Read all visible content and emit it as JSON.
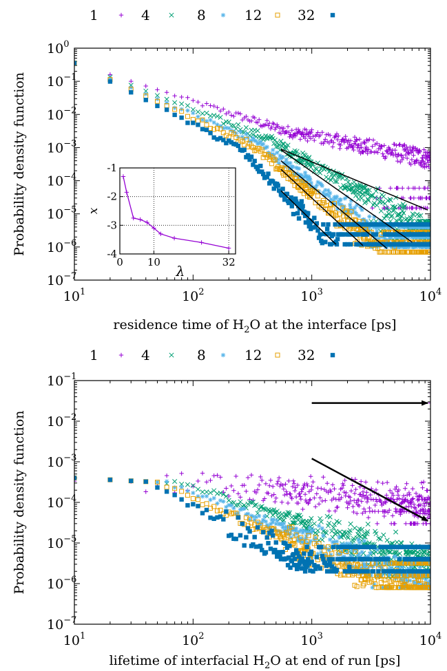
{
  "chart_data": [
    {
      "type": "scatter",
      "title": "",
      "xlabel": "residence time of H",
      "xlabel_sub": "2",
      "xlabel_rest": "O at the interface [ps]",
      "ylabel": "Probability density function",
      "xscale": "log",
      "yscale": "log",
      "xlim": [
        10,
        10000
      ],
      "ylim": [
        1e-07,
        1
      ],
      "x_ticks": [
        10,
        100,
        1000,
        10000
      ],
      "x_tick_labels": [
        {
          "base": "10",
          "exp": "1"
        },
        {
          "base": "10",
          "exp": "2"
        },
        {
          "base": "10",
          "exp": "3"
        },
        {
          "base": "10",
          "exp": "4"
        }
      ],
      "y_ticks": [
        1,
        0.1,
        0.01,
        0.001,
        0.0001,
        1e-05,
        1e-06,
        1e-07
      ],
      "y_tick_labels": [
        {
          "base": "10",
          "exp": "0"
        },
        {
          "base": "10",
          "exp": "−1"
        },
        {
          "base": "10",
          "exp": "−2"
        },
        {
          "base": "10",
          "exp": "−3"
        },
        {
          "base": "10",
          "exp": "−4"
        },
        {
          "base": "10",
          "exp": "−5"
        },
        {
          "base": "10",
          "exp": "−6"
        },
        {
          "base": "10",
          "exp": "−7"
        }
      ],
      "legend_position": "top, outside",
      "series": [
        {
          "name": "1",
          "marker": "plus",
          "color": "#9400d3",
          "log_start": -0.45,
          "slope_early": -1.15,
          "t_break": 600,
          "slope_late": -0.7,
          "floor": 1.5e-05
        },
        {
          "name": "4",
          "marker": "cross",
          "color": "#009e73",
          "log_start": -0.45,
          "slope_early": -1.4,
          "t_break": 450,
          "slope_late": -2.1,
          "floor": 1.5e-06
        },
        {
          "name": "8",
          "marker": "star",
          "color": "#56b4e9",
          "log_start": -0.45,
          "slope_early": -1.55,
          "t_break": 350,
          "slope_late": -2.7,
          "floor": 1e-06
        },
        {
          "name": "12",
          "marker": "open-square",
          "color": "#e69f00",
          "log_start": -0.45,
          "slope_early": -1.65,
          "t_break": 300,
          "slope_late": -2.9,
          "floor": 7e-07
        },
        {
          "name": "32",
          "marker": "filled-square",
          "color": "#0072b2",
          "log_start": -0.45,
          "slope_early": -1.85,
          "t_break": 250,
          "slope_late": -3.8,
          "floor": 1.2e-06
        }
      ],
      "fit_lines": [
        {
          "series": "1",
          "x": [
            550,
            9500
          ],
          "y": [
            0.0009,
            1.3e-05
          ]
        },
        {
          "series": "4",
          "x": [
            550,
            7000
          ],
          "y": [
            0.00085,
            1.4e-06
          ]
        },
        {
          "series": "8",
          "x": [
            550,
            4300
          ],
          "y": [
            0.0004,
            9e-07
          ]
        },
        {
          "series": "12",
          "x": [
            550,
            2700
          ],
          "y": [
            0.00022,
            1.1e-06
          ]
        },
        {
          "series": "32",
          "x": [
            550,
            1600
          ],
          "y": [
            5e-05,
            1.2e-06
          ]
        }
      ],
      "inset": {
        "type": "line",
        "xlabel": "λ",
        "ylabel": "x",
        "xlim": [
          0,
          34
        ],
        "ylim": [
          -4,
          -1
        ],
        "x_ticks": [
          0,
          10,
          32
        ],
        "x_tick_labels": [
          "0",
          "10",
          "32"
        ],
        "y_ticks": [
          -1,
          -2,
          -3,
          -4
        ],
        "y_tick_labels": [
          "-1",
          "-2",
          "-3",
          "-4"
        ],
        "grid": "dotted",
        "color": "#9400d3",
        "x": [
          1,
          2,
          4,
          6,
          8,
          10,
          12,
          16,
          24,
          32
        ],
        "y": [
          -1.3,
          -1.85,
          -2.75,
          -2.8,
          -2.9,
          -3.1,
          -3.3,
          -3.45,
          -3.6,
          -3.8
        ]
      }
    },
    {
      "type": "scatter",
      "title": "",
      "xlabel": "lifetime of interfacial H",
      "xlabel_sub": "2",
      "xlabel_rest": "O at end of run [ps]",
      "ylabel": "Probability density function",
      "xscale": "log",
      "yscale": "log",
      "xlim": [
        10,
        10000
      ],
      "ylim": [
        1e-07,
        0.1
      ],
      "x_ticks": [
        10,
        100,
        1000,
        10000
      ],
      "x_tick_labels": [
        {
          "base": "10",
          "exp": "1"
        },
        {
          "base": "10",
          "exp": "2"
        },
        {
          "base": "10",
          "exp": "3"
        },
        {
          "base": "10",
          "exp": "4"
        }
      ],
      "y_ticks": [
        0.1,
        0.01,
        0.001,
        0.0001,
        1e-05,
        1e-06,
        1e-07
      ],
      "y_tick_labels": [
        {
          "base": "10",
          "exp": "−1"
        },
        {
          "base": "10",
          "exp": "−2"
        },
        {
          "base": "10",
          "exp": "−3"
        },
        {
          "base": "10",
          "exp": "−4"
        },
        {
          "base": "10",
          "exp": "−5"
        },
        {
          "base": "10",
          "exp": "−6"
        },
        {
          "base": "10",
          "exp": "−7"
        }
      ],
      "legend_position": "top, outside",
      "series": [
        {
          "name": "1",
          "marker": "plus",
          "color": "#9400d3",
          "plateau": 0.0004,
          "t_break": 120,
          "slope_late": -0.25,
          "floor": 3e-05,
          "endpoint": [
            10000,
            0.028
          ]
        },
        {
          "name": "4",
          "marker": "cross",
          "color": "#009e73",
          "plateau": 0.0004,
          "t_break": 80,
          "slope_late": -0.95,
          "floor": 1.5e-06
        },
        {
          "name": "8",
          "marker": "star",
          "color": "#56b4e9",
          "plateau": 0.0004,
          "t_break": 60,
          "slope_late": -1.15,
          "floor": 8e-07
        },
        {
          "name": "12",
          "marker": "open-square",
          "color": "#e69f00",
          "plateau": 0.0004,
          "t_break": 50,
          "slope_late": -1.3,
          "floor": 8e-07
        },
        {
          "name": "32",
          "marker": "filled-square",
          "color": "#0072b2",
          "plateau": 0.0004,
          "t_break": 40,
          "slope_late": -1.5,
          "floor": 2e-06
        }
      ],
      "arrows": [
        {
          "from": [
            1000,
            0.028
          ],
          "to": [
            9500,
            0.028
          ]
        },
        {
          "from": [
            1000,
            0.0012
          ],
          "to": [
            9500,
            3.5e-05
          ]
        }
      ]
    }
  ]
}
